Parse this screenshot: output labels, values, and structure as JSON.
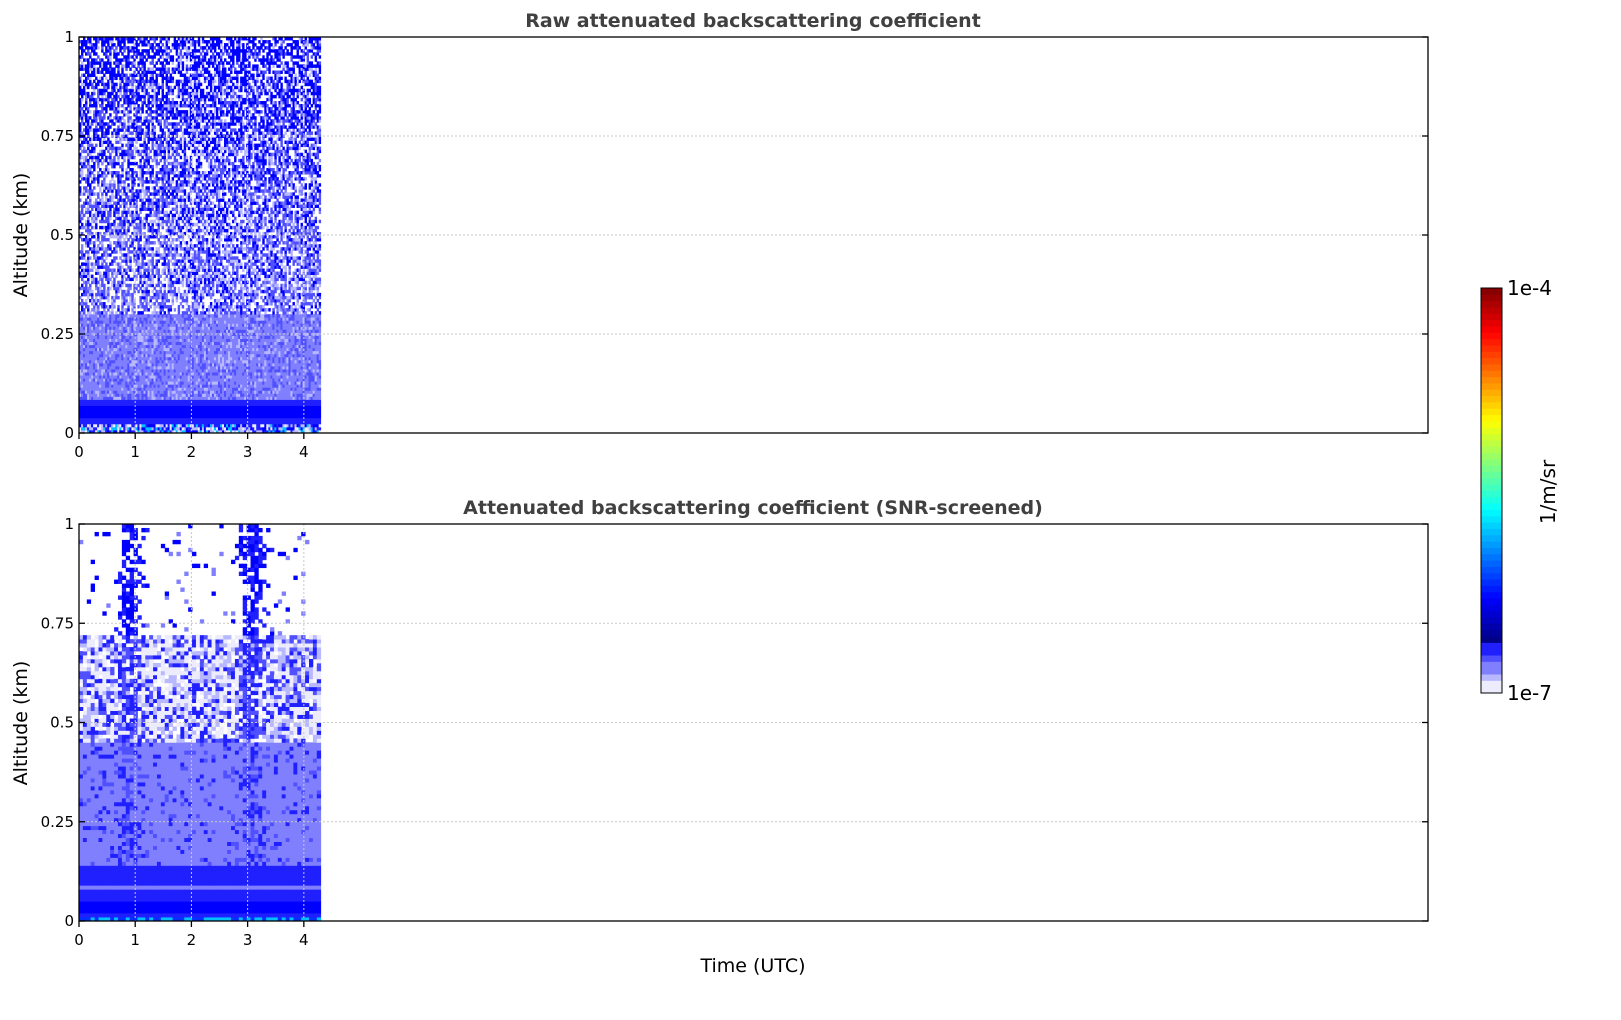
{
  "chart_data": [
    {
      "type": "heatmap",
      "title": "Raw attenuated backscattering coefficient",
      "xlabel": "",
      "ylabel": "Altitude (km)",
      "xlim": [
        0,
        24
      ],
      "ylim": [
        0,
        1
      ],
      "xticks": [
        "0",
        "1",
        "2",
        "3",
        "4"
      ],
      "yticks": [
        "0",
        "0.25",
        "0.5",
        "0.75",
        "1"
      ],
      "data_time_range": [
        0,
        4.3
      ],
      "grid": true,
      "profile_log10_beta": [
        {
          "altitude_km": [
            0,
            0.02
          ],
          "value": -6.0,
          "note_level": "mixed"
        },
        {
          "altitude_km": [
            0.02,
            0.08
          ],
          "value": -6.4
        },
        {
          "altitude_km": [
            0.08,
            0.3
          ],
          "value": -6.6
        },
        {
          "altitude_km": [
            0.3,
            1.0
          ],
          "value": -6.8
        }
      ]
    },
    {
      "type": "heatmap",
      "title": "Attenuated backscattering coefficient (SNR-screened)",
      "xlabel": "Time (UTC)",
      "ylabel": "Altitude (km)",
      "xlim": [
        0,
        24
      ],
      "ylim": [
        0,
        1
      ],
      "xticks": [
        "0",
        "1",
        "2",
        "3",
        "4"
      ],
      "yticks": [
        "0",
        "0.25",
        "0.5",
        "0.75",
        "1"
      ],
      "data_time_range": [
        0,
        4.3
      ],
      "grid": true,
      "profile_log10_beta": [
        {
          "altitude_km": [
            0,
            0.15
          ],
          "value": -6.4
        },
        {
          "altitude_km": [
            0.15,
            0.45
          ],
          "value": -6.6
        },
        {
          "altitude_km": [
            0.45,
            0.7
          ],
          "value": -6.85
        },
        {
          "altitude_km": [
            0.7,
            1.0
          ],
          "value": -7.0
        }
      ],
      "plumes_time_utc": [
        0.9,
        3.1
      ]
    }
  ],
  "colorbar": {
    "label": "1/m/sr",
    "min_label": "1e-7",
    "max_label": "1e-4",
    "range_log10": [
      -7,
      -4
    ],
    "colormap": "jet"
  }
}
